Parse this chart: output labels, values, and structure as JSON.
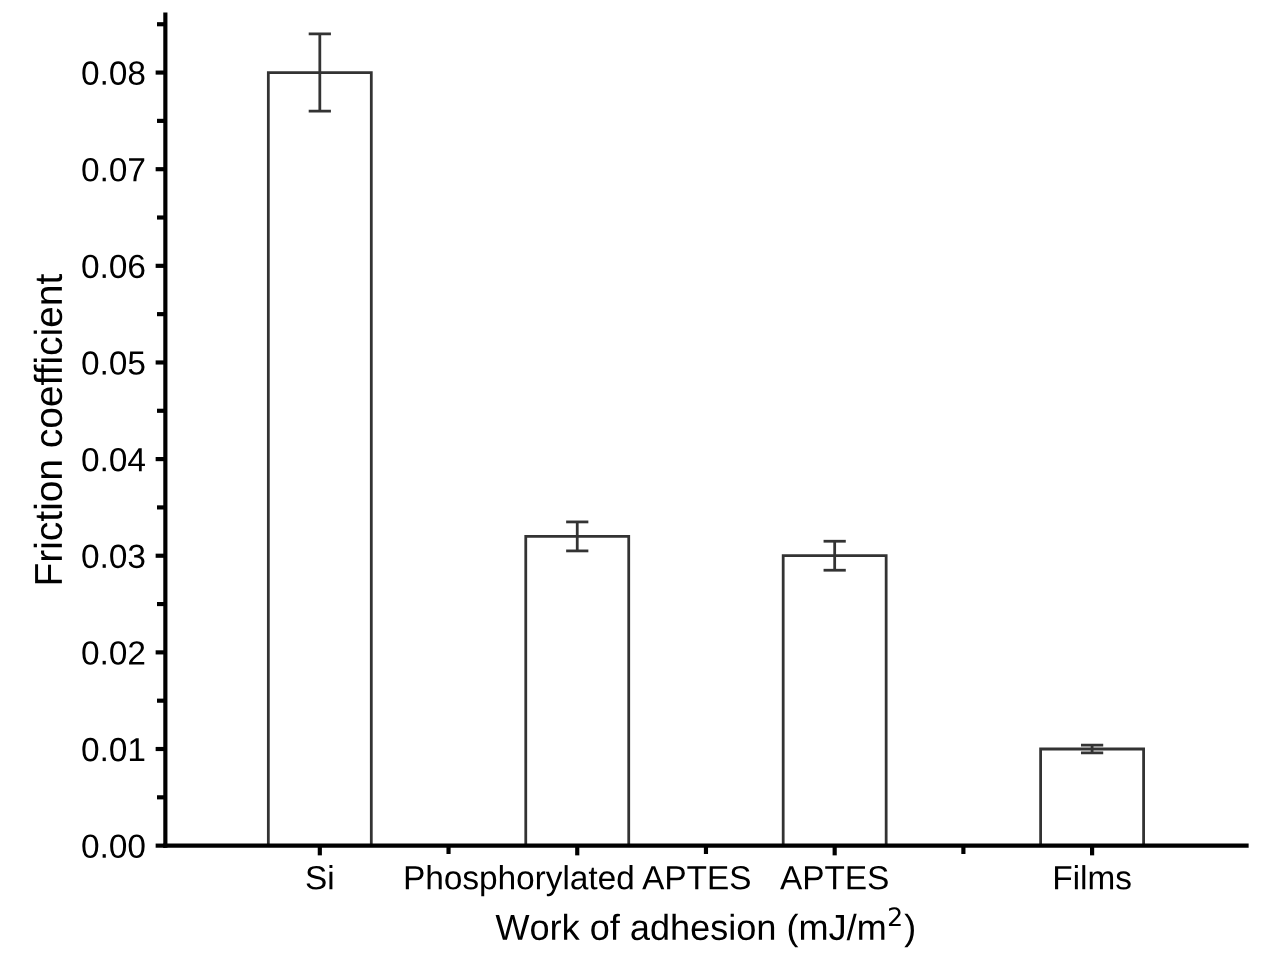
{
  "chart_data": {
    "type": "bar",
    "xlabel": "Work of adhesion (mJ/m$^{2}$)",
    "ylabel": "Friction coefficient",
    "categories": [
      "Si",
      "Phosphorylated APTES",
      "APTES",
      "Films"
    ],
    "values": [
      0.08,
      0.032,
      0.03,
      0.01
    ],
    "errors": [
      0.004,
      0.0015,
      0.0015,
      0.0004
    ],
    "color": "#ffffff",
    "ylim": [
      0,
      0.086
    ],
    "yticks": [
      {
        "value": 0,
        "label": "0.00"
      },
      {
        "value": 0.01,
        "label": "0.01"
      },
      {
        "value": 0.02,
        "label": "0.02"
      },
      {
        "value": 0.03,
        "label": "0.03"
      },
      {
        "value": 0.04,
        "label": "0.04"
      },
      {
        "value": 0.05,
        "label": "0.05"
      },
      {
        "value": 0.06,
        "label": "0.06"
      },
      {
        "value": 0.07,
        "label": "0.07"
      },
      {
        "value": 0.08,
        "label": "0.08"
      }
    ],
    "grid": false,
    "legend": false
  }
}
